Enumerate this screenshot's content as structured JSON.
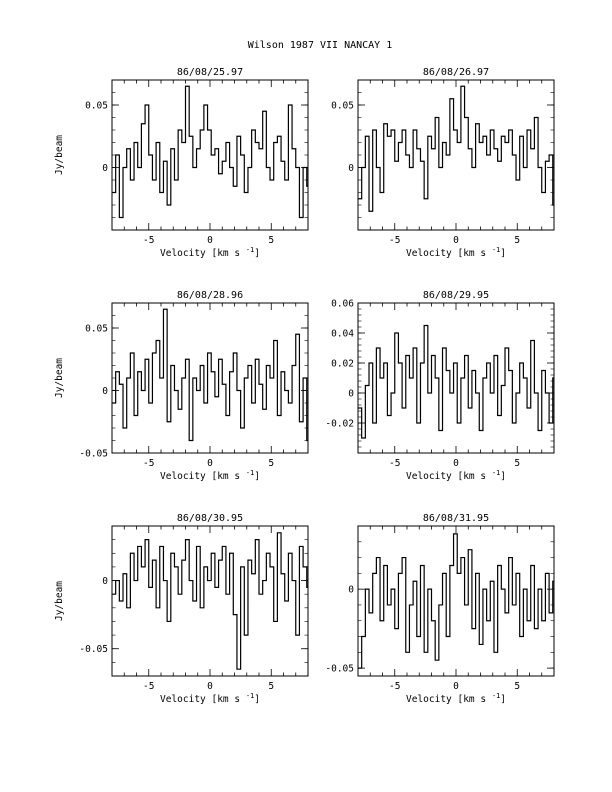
{
  "page_title": "Wilson 1987 VII   NANCAY     1",
  "chart_data": [
    {
      "type": "line",
      "title": "86/08/25.97",
      "xlabel": "Velocity [km s",
      "xlabel_sup": "-1",
      "xlabel_end": "]",
      "ylabel": "Jy/beam",
      "xlim": [
        -8,
        8
      ],
      "ylim": [
        -0.05,
        0.07
      ],
      "xticks": [
        -5,
        0,
        5
      ],
      "yticks": [
        0,
        0.05
      ],
      "ytick_labels": [
        "0",
        "0.05"
      ],
      "x": [
        -8.0,
        -7.7,
        -7.4,
        -7.1,
        -6.8,
        -6.5,
        -6.2,
        -5.9,
        -5.6,
        -5.3,
        -5.0,
        -4.7,
        -4.4,
        -4.1,
        -3.8,
        -3.5,
        -3.2,
        -2.9,
        -2.6,
        -2.3,
        -2.0,
        -1.7,
        -1.4,
        -1.1,
        -0.8,
        -0.5,
        -0.2,
        0.1,
        0.4,
        0.7,
        1.0,
        1.3,
        1.6,
        1.9,
        2.2,
        2.5,
        2.8,
        3.1,
        3.4,
        3.7,
        4.0,
        4.3,
        4.6,
        4.9,
        5.2,
        5.5,
        5.8,
        6.1,
        6.4,
        6.7,
        7.0,
        7.3,
        7.6,
        7.9
      ],
      "y": [
        -0.02,
        0.01,
        -0.04,
        0.0,
        0.015,
        -0.01,
        0.02,
        0.0,
        0.035,
        0.05,
        0.01,
        -0.01,
        0.02,
        -0.02,
        0.005,
        -0.03,
        0.015,
        -0.01,
        0.03,
        0.02,
        0.065,
        0.025,
        0.0,
        0.015,
        0.03,
        0.05,
        0.03,
        0.01,
        0.015,
        -0.005,
        0.005,
        0.02,
        0.0,
        -0.015,
        0.025,
        0.01,
        -0.02,
        0.0,
        0.03,
        0.02,
        0.015,
        0.045,
        0.0,
        -0.01,
        0.02,
        0.025,
        0.005,
        -0.01,
        0.05,
        0.015,
        0.0,
        -0.04,
        0.0,
        -0.015
      ]
    },
    {
      "type": "line",
      "title": "86/08/26.97",
      "xlabel": "Velocity [km s",
      "xlabel_sup": "-1",
      "xlabel_end": "]",
      "ylabel": "",
      "xlim": [
        -8,
        8
      ],
      "ylim": [
        -0.05,
        0.07
      ],
      "xticks": [
        -5,
        0,
        5
      ],
      "yticks": [
        0,
        0.05
      ],
      "ytick_labels": [
        "0",
        "0.05"
      ],
      "x": [
        -8.0,
        -7.7,
        -7.4,
        -7.1,
        -6.8,
        -6.5,
        -6.2,
        -5.9,
        -5.6,
        -5.3,
        -5.0,
        -4.7,
        -4.4,
        -4.1,
        -3.8,
        -3.5,
        -3.2,
        -2.9,
        -2.6,
        -2.3,
        -2.0,
        -1.7,
        -1.4,
        -1.1,
        -0.8,
        -0.5,
        -0.2,
        0.1,
        0.4,
        0.7,
        1.0,
        1.3,
        1.6,
        1.9,
        2.2,
        2.5,
        2.8,
        3.1,
        3.4,
        3.7,
        4.0,
        4.3,
        4.6,
        4.9,
        5.2,
        5.5,
        5.8,
        6.1,
        6.4,
        6.7,
        7.0,
        7.3,
        7.6,
        7.9
      ],
      "y": [
        -0.025,
        0.0,
        0.025,
        -0.035,
        0.03,
        0.0,
        -0.02,
        0.035,
        0.025,
        0.03,
        0.005,
        0.02,
        0.03,
        0.01,
        0.0,
        0.03,
        0.015,
        0.005,
        -0.025,
        0.025,
        0.015,
        0.04,
        0.0,
        0.02,
        0.01,
        0.055,
        0.03,
        0.02,
        0.065,
        0.04,
        0.015,
        0.0,
        0.035,
        0.02,
        0.025,
        0.01,
        0.03,
        0.015,
        0.005,
        0.025,
        0.02,
        0.03,
        0.01,
        -0.01,
        0.025,
        0.0,
        0.03,
        0.015,
        0.04,
        0.0,
        -0.02,
        0.005,
        0.01,
        -0.03
      ]
    },
    {
      "type": "line",
      "title": "86/08/28.96",
      "xlabel": "Velocity [km s",
      "xlabel_sup": "-1",
      "xlabel_end": "]",
      "ylabel": "Jy/beam",
      "xlim": [
        -8,
        8
      ],
      "ylim": [
        -0.05,
        0.07
      ],
      "xticks": [
        -5,
        0,
        5
      ],
      "yticks": [
        -0.05,
        0,
        0.05
      ],
      "ytick_labels": [
        "-0.05",
        "0",
        "0.05"
      ],
      "x": [
        -8.0,
        -7.7,
        -7.4,
        -7.1,
        -6.8,
        -6.5,
        -6.2,
        -5.9,
        -5.6,
        -5.3,
        -5.0,
        -4.7,
        -4.4,
        -4.1,
        -3.8,
        -3.5,
        -3.2,
        -2.9,
        -2.6,
        -2.3,
        -2.0,
        -1.7,
        -1.4,
        -1.1,
        -0.8,
        -0.5,
        -0.2,
        0.1,
        0.4,
        0.7,
        1.0,
        1.3,
        1.6,
        1.9,
        2.2,
        2.5,
        2.8,
        3.1,
        3.4,
        3.7,
        4.0,
        4.3,
        4.6,
        4.9,
        5.2,
        5.5,
        5.8,
        6.1,
        6.4,
        6.7,
        7.0,
        7.3,
        7.6,
        7.9
      ],
      "y": [
        -0.01,
        0.015,
        0.005,
        -0.03,
        0.01,
        0.03,
        -0.02,
        0.015,
        0.0,
        0.025,
        -0.01,
        0.03,
        0.04,
        0.01,
        0.065,
        -0.025,
        0.02,
        0.0,
        -0.015,
        0.01,
        0.025,
        -0.04,
        0.01,
        0.0,
        0.02,
        -0.01,
        0.03,
        0.015,
        -0.005,
        0.025,
        0.005,
        -0.02,
        0.015,
        0.03,
        0.0,
        -0.03,
        0.01,
        0.02,
        -0.01,
        0.025,
        0.005,
        -0.015,
        0.02,
        0.01,
        0.04,
        -0.02,
        0.015,
        0.0,
        -0.01,
        0.02,
        0.045,
        -0.025,
        0.01,
        -0.04
      ]
    },
    {
      "type": "line",
      "title": "86/08/29.95",
      "xlabel": "Velocity [km s",
      "xlabel_sup": "-1",
      "xlabel_end": "]",
      "ylabel": "",
      "xlim": [
        -8,
        8
      ],
      "ylim": [
        -0.04,
        0.06
      ],
      "xticks": [
        -5,
        0,
        5
      ],
      "yticks": [
        -0.02,
        0,
        0.02,
        0.04,
        0.06
      ],
      "ytick_labels": [
        "-0.02",
        "0",
        "0.02",
        "0.04",
        "0.06"
      ],
      "x": [
        -8.0,
        -7.7,
        -7.4,
        -7.1,
        -6.8,
        -6.5,
        -6.2,
        -5.9,
        -5.6,
        -5.3,
        -5.0,
        -4.7,
        -4.4,
        -4.1,
        -3.8,
        -3.5,
        -3.2,
        -2.9,
        -2.6,
        -2.3,
        -2.0,
        -1.7,
        -1.4,
        -1.1,
        -0.8,
        -0.5,
        -0.2,
        0.1,
        0.4,
        0.7,
        1.0,
        1.3,
        1.6,
        1.9,
        2.2,
        2.5,
        2.8,
        3.1,
        3.4,
        3.7,
        4.0,
        4.3,
        4.6,
        4.9,
        5.2,
        5.5,
        5.8,
        6.1,
        6.4,
        6.7,
        7.0,
        7.3,
        7.6,
        7.9
      ],
      "y": [
        -0.01,
        -0.03,
        0.005,
        0.02,
        -0.02,
        0.03,
        0.01,
        0.02,
        -0.015,
        0.0,
        0.04,
        0.02,
        -0.01,
        0.025,
        0.01,
        0.03,
        -0.02,
        0.02,
        0.045,
        0.0,
        0.025,
        0.01,
        -0.025,
        0.03,
        0.015,
        0.0,
        0.02,
        -0.02,
        0.01,
        0.025,
        -0.01,
        0.015,
        0.0,
        -0.025,
        0.01,
        0.02,
        0.0,
        0.025,
        -0.015,
        0.005,
        0.03,
        0.015,
        -0.02,
        0.0,
        0.02,
        0.01,
        -0.01,
        0.035,
        0.0,
        -0.025,
        0.015,
        0.0,
        -0.02,
        0.01
      ]
    },
    {
      "type": "line",
      "title": "86/08/30.95",
      "xlabel": "Velocity [km s",
      "xlabel_sup": "-1",
      "xlabel_end": "]",
      "ylabel": "Jy/beam",
      "xlim": [
        -8,
        8
      ],
      "ylim": [
        -0.07,
        0.04
      ],
      "xticks": [
        -5,
        0,
        5
      ],
      "yticks": [
        -0.05,
        0
      ],
      "ytick_labels": [
        "-0.05",
        "0"
      ],
      "x": [
        -8.0,
        -7.7,
        -7.4,
        -7.1,
        -6.8,
        -6.5,
        -6.2,
        -5.9,
        -5.6,
        -5.3,
        -5.0,
        -4.7,
        -4.4,
        -4.1,
        -3.8,
        -3.5,
        -3.2,
        -2.9,
        -2.6,
        -2.3,
        -2.0,
        -1.7,
        -1.4,
        -1.1,
        -0.8,
        -0.5,
        -0.2,
        0.1,
        0.4,
        0.7,
        1.0,
        1.3,
        1.6,
        1.9,
        2.2,
        2.5,
        2.8,
        3.1,
        3.4,
        3.7,
        4.0,
        4.3,
        4.6,
        4.9,
        5.2,
        5.5,
        5.8,
        6.1,
        6.4,
        6.7,
        7.0,
        7.3,
        7.6,
        7.9
      ],
      "y": [
        -0.01,
        0.0,
        -0.015,
        0.005,
        -0.02,
        0.02,
        0.0,
        0.025,
        0.01,
        0.03,
        -0.005,
        0.015,
        -0.02,
        0.025,
        0.0,
        -0.03,
        0.02,
        0.01,
        -0.01,
        0.015,
        0.03,
        0.0,
        -0.015,
        0.025,
        -0.02,
        0.01,
        0.0,
        0.02,
        -0.005,
        0.015,
        0.025,
        -0.01,
        0.02,
        -0.025,
        -0.065,
        0.01,
        -0.04,
        0.015,
        0.005,
        0.03,
        -0.01,
        0.0,
        0.02,
        0.01,
        -0.03,
        0.035,
        0.005,
        -0.015,
        0.02,
        0.0,
        -0.04,
        0.025,
        0.01,
        -0.005
      ]
    },
    {
      "type": "line",
      "title": "86/08/31.95",
      "xlabel": "Velocity [km s",
      "xlabel_sup": "-1",
      "xlabel_end": "]",
      "ylabel": "",
      "xlim": [
        -8,
        8
      ],
      "ylim": [
        -0.055,
        0.04
      ],
      "xticks": [
        -5,
        0,
        5
      ],
      "yticks": [
        -0.05,
        0
      ],
      "ytick_labels": [
        "-0.05",
        "0"
      ],
      "x": [
        -8.0,
        -7.7,
        -7.4,
        -7.1,
        -6.8,
        -6.5,
        -6.2,
        -5.9,
        -5.6,
        -5.3,
        -5.0,
        -4.7,
        -4.4,
        -4.1,
        -3.8,
        -3.5,
        -3.2,
        -2.9,
        -2.6,
        -2.3,
        -2.0,
        -1.7,
        -1.4,
        -1.1,
        -0.8,
        -0.5,
        -0.2,
        0.1,
        0.4,
        0.7,
        1.0,
        1.3,
        1.6,
        1.9,
        2.2,
        2.5,
        2.8,
        3.1,
        3.4,
        3.7,
        4.0,
        4.3,
        4.6,
        4.9,
        5.2,
        5.5,
        5.8,
        6.1,
        6.4,
        6.7,
        7.0,
        7.3,
        7.6,
        7.9
      ],
      "y": [
        -0.05,
        -0.03,
        0.0,
        -0.015,
        0.01,
        0.02,
        -0.02,
        0.015,
        -0.01,
        0.0,
        -0.025,
        0.01,
        0.02,
        -0.04,
        -0.01,
        0.005,
        -0.03,
        0.015,
        -0.04,
        0.0,
        -0.02,
        -0.045,
        -0.01,
        0.01,
        -0.03,
        0.015,
        0.035,
        0.01,
        0.02,
        -0.01,
        0.025,
        -0.025,
        0.01,
        -0.035,
        0.0,
        -0.02,
        0.005,
        -0.04,
        0.015,
        0.0,
        -0.015,
        0.02,
        -0.01,
        0.01,
        -0.03,
        0.0,
        -0.02,
        0.015,
        -0.025,
        0.0,
        -0.02,
        0.01,
        -0.015,
        0.005
      ]
    }
  ]
}
